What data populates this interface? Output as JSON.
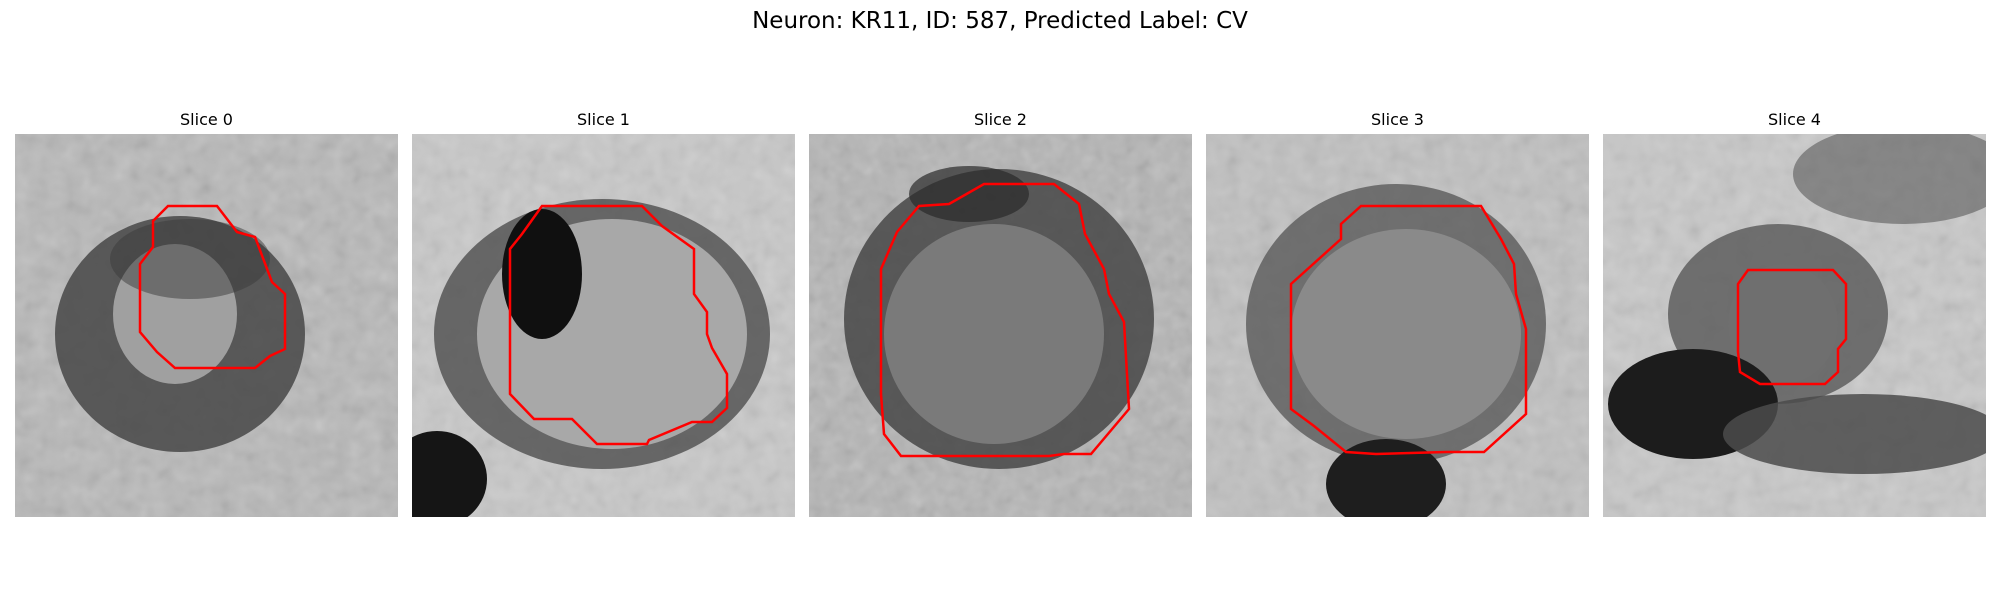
{
  "figure": {
    "title": "Neuron: KR11, ID: 587, Predicted Label: CV"
  },
  "contour_color": "#ff0000",
  "slices": [
    {
      "title": "Slice 0"
    },
    {
      "title": "Slice 1"
    },
    {
      "title": "Slice 2"
    },
    {
      "title": "Slice 3"
    },
    {
      "title": "Slice 4"
    }
  ]
}
